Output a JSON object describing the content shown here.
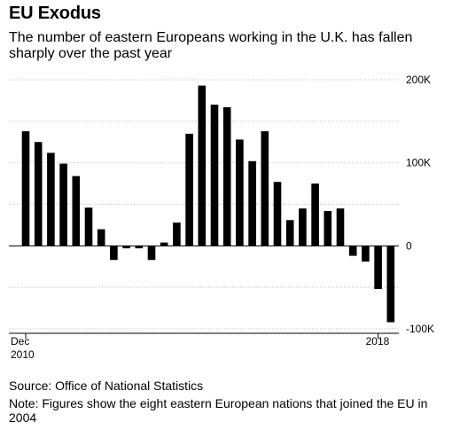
{
  "title": "EU Exodus",
  "subtitle": "The number of eastern Europeans working in the U.K. has fallen sharply over the past year",
  "source": "Source: Office of National Statistics",
  "note": "Note: Figures show the eight eastern European nations that joined the EU in 2004",
  "chart_data": {
    "type": "bar",
    "title": "EU Exodus",
    "subtitle": "The number of eastern Europeans working in the U.K. has fallen sharply over the past year",
    "x_ticks": [
      {
        "index": 0,
        "label": "Dec",
        "sublabel": "2010"
      },
      {
        "index": 28,
        "label": "2018",
        "sublabel": ""
      }
    ],
    "y_ticks": [
      {
        "value": 200000,
        "label": "200K"
      },
      {
        "value": 100000,
        "label": "100K"
      },
      {
        "value": 0,
        "label": "0"
      },
      {
        "value": -100000,
        "label": "-100K"
      }
    ],
    "ylim": [
      -100000,
      200000
    ],
    "gridlines": [
      200000,
      150000,
      100000,
      50000,
      -50000,
      -100000
    ],
    "series": [
      {
        "values": [
          138000,
          125000,
          112000,
          99000,
          84000,
          46000,
          20000,
          -17000,
          -3000,
          -3000,
          -17000,
          4000,
          28000,
          135000,
          193000,
          170000,
          167000,
          128000,
          102000,
          138000,
          77000,
          31000,
          45000,
          75000,
          42000,
          45000,
          -12000,
          -19000,
          -52000,
          -92000
        ]
      }
    ],
    "bar_color": "#000000",
    "grid": true,
    "legend": "none"
  }
}
